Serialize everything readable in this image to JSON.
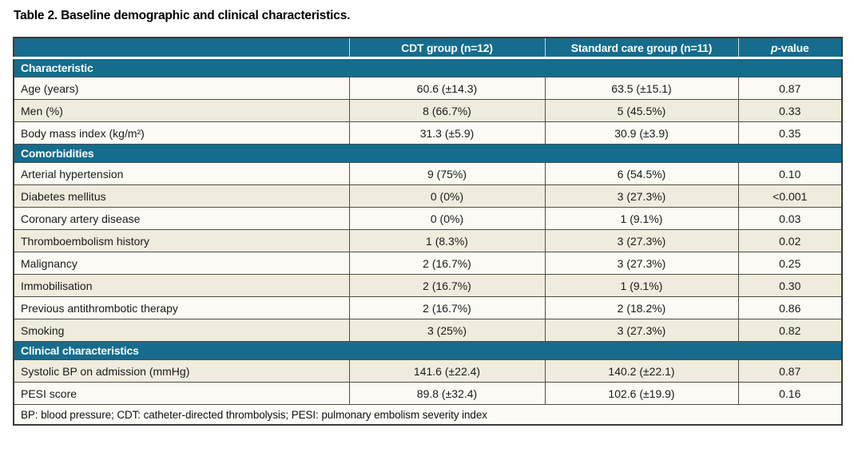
{
  "title": "Table 2. Baseline demographic and clinical characteristics.",
  "table": {
    "columns": {
      "characteristic": "",
      "cdt": "CDT group (n=12)",
      "standard": "Standard care group (n=11)",
      "pvalue_italic": "p",
      "pvalue_rest": "-value"
    },
    "colors": {
      "header_teal": "#156c8d",
      "row_light": "#fbfaf4",
      "row_beige": "#f0ecdd",
      "grid_border": "#4f4e46",
      "header_text": "#ffffff"
    },
    "sections": [
      {
        "header": "Characteristic",
        "rows": [
          {
            "label": "Age (years)",
            "cdt": "60.6 (±14.3)",
            "standard": "63.5 (±15.1)",
            "p": "0.87"
          },
          {
            "label": "Men (%)",
            "cdt": "8 (66.7%)",
            "standard": "5 (45.5%)",
            "p": "0.33"
          },
          {
            "label": "Body mass index (kg/m²)",
            "cdt": "31.3 (±5.9)",
            "standard": "30.9 (±3.9)",
            "p": "0.35"
          }
        ]
      },
      {
        "header": "Comorbidities",
        "rows": [
          {
            "label": "Arterial hypertension",
            "cdt": "9 (75%)",
            "standard": "6 (54.5%)",
            "p": "0.10"
          },
          {
            "label": "Diabetes mellitus",
            "cdt": "0 (0%)",
            "standard": "3 (27.3%)",
            "p": "<0.001"
          },
          {
            "label": "Coronary artery disease",
            "cdt": "0 (0%)",
            "standard": "1 (9.1%)",
            "p": "0.03"
          },
          {
            "label": "Thromboembolism history",
            "cdt": "1 (8.3%)",
            "standard": "3 (27.3%)",
            "p": "0.02"
          },
          {
            "label": "Malignancy",
            "cdt": "2 (16.7%)",
            "standard": "3 (27.3%)",
            "p": "0.25"
          },
          {
            "label": "Immobilisation",
            "cdt": "2 (16.7%)",
            "standard": "1 (9.1%)",
            "p": "0.30"
          },
          {
            "label": "Previous antithrombotic therapy",
            "cdt": "2 (16.7%)",
            "standard": "2 (18.2%)",
            "p": "0.86"
          },
          {
            "label": "Smoking",
            "cdt": "3 (25%)",
            "standard": "3 (27.3%)",
            "p": "0.82"
          }
        ]
      },
      {
        "header": "Clinical characteristics",
        "rows": [
          {
            "label": "Systolic BP on admission (mmHg)",
            "cdt": "141.6 (±22.4)",
            "standard": "140.2 (±22.1)",
            "p": "0.87"
          },
          {
            "label": "PESI score",
            "cdt": "89.8 (±32.4)",
            "standard": "102.6 (±19.9)",
            "p": "0.16"
          }
        ]
      }
    ],
    "footnote": "BP: blood pressure; CDT: catheter-directed thrombolysis; PESI: pulmonary embolism severity index"
  }
}
